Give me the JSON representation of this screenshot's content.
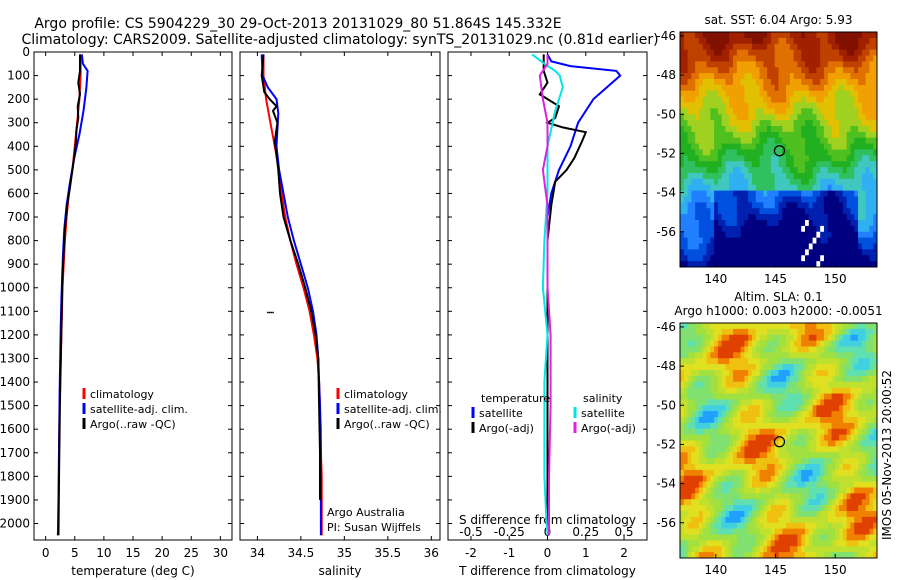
{
  "title": {
    "line1": "Argo profile: CS 5904229_30 29-Oct-2013 20131029_80 51.864S 145.332E",
    "line2": "Climatology: CARS2009. Satellite-adjusted climatology: synTS_20131029.nc (0.81d earlier)"
  },
  "colors": {
    "climatology": "#ff0000",
    "satellite": "#0000ff",
    "argo": "#000000",
    "sal_satellite": "#00e5e5",
    "sal_argo": "#e020e0"
  },
  "chart_data": [
    {
      "type": "line",
      "panel": "temperature",
      "xlabel": "temperature (deg C)",
      "ylabel": "",
      "xlim": [
        -2,
        32
      ],
      "ylim": [
        2070,
        0
      ],
      "xticks": [
        0,
        5,
        10,
        15,
        20,
        25,
        30
      ],
      "yticks": [
        0,
        100,
        200,
        300,
        400,
        500,
        600,
        700,
        800,
        900,
        1000,
        1100,
        1200,
        1300,
        1400,
        1500,
        1600,
        1700,
        1800,
        1900,
        2000
      ],
      "legend": [
        "climatology",
        "satellite-adj. clim.",
        "Argo(..raw -QC)"
      ],
      "series": [
        {
          "name": "climatology",
          "color": "#ff0000",
          "x": [
            6.0,
            6.0,
            5.8,
            5.4,
            5.0,
            4.6,
            4.0,
            3.6,
            3.3,
            3.1,
            2.9,
            2.8,
            2.7,
            2.6,
            2.5,
            2.4,
            2.35,
            2.3,
            2.25,
            2.2,
            2.15,
            2.1
          ],
          "y": [
            10,
            100,
            200,
            300,
            400,
            500,
            600,
            700,
            800,
            900,
            1000,
            1100,
            1200,
            1300,
            1400,
            1500,
            1600,
            1700,
            1800,
            1900,
            2000,
            2050
          ]
        },
        {
          "name": "satellite-adj. clim.",
          "color": "#0000ff",
          "x": [
            6.2,
            6.4,
            7.2,
            7.0,
            6.5,
            5.8,
            4.9,
            4.2,
            3.6,
            3.2,
            3.0,
            2.85,
            2.7,
            2.6,
            2.5,
            2.4,
            2.35,
            2.3,
            2.25,
            2.2,
            2.15,
            2.1
          ],
          "y": [
            10,
            50,
            80,
            150,
            250,
            350,
            450,
            550,
            650,
            750,
            850,
            950,
            1050,
            1150,
            1300,
            1450,
            1600,
            1700,
            1800,
            1900,
            2000,
            2050
          ]
        },
        {
          "name": "Argo(..raw -QC)",
          "color": "#000000",
          "x": [
            5.9,
            5.9,
            5.6,
            5.9,
            5.5,
            5.6,
            5.3,
            5.2,
            5.0,
            4.6,
            4.2,
            3.7,
            3.3,
            3.1,
            2.9,
            2.75,
            2.6,
            2.45,
            2.35,
            2.25,
            2.2
          ],
          "y": [
            10,
            80,
            130,
            180,
            230,
            280,
            330,
            380,
            430,
            500,
            570,
            650,
            750,
            850,
            950,
            1100,
            1300,
            1500,
            1700,
            1900,
            2050
          ]
        }
      ]
    },
    {
      "type": "line",
      "panel": "salinity",
      "xlabel": "salinity",
      "ylabel": "",
      "xlim": [
        33.8,
        36.1
      ],
      "ylim": [
        2070,
        0
      ],
      "xticks": [
        34,
        34.5,
        35,
        35.5,
        36
      ],
      "xticklabels": [
        "34",
        "34.5",
        "35",
        "35.5",
        "36"
      ],
      "legend": [
        "climatology",
        "satellite-adj. clim.",
        "Argo(..raw -QC)"
      ],
      "annotations": [
        "Argo Australia",
        "PI: Susan Wijffels"
      ],
      "series": [
        {
          "name": "climatology",
          "color": "#ff0000",
          "x": [
            34.07,
            34.07,
            34.1,
            34.15,
            34.2,
            34.25,
            34.28,
            34.32,
            34.38,
            34.45,
            34.53,
            34.6,
            34.65,
            34.69,
            34.71,
            34.72,
            34.73,
            34.73,
            34.74,
            34.74,
            34.74
          ],
          "y": [
            10,
            100,
            200,
            300,
            400,
            500,
            600,
            700,
            800,
            900,
            1000,
            1100,
            1200,
            1300,
            1400,
            1500,
            1600,
            1700,
            1800,
            1900,
            2050
          ]
        },
        {
          "name": "satellite-adj. clim.",
          "color": "#0000ff",
          "x": [
            34.05,
            34.06,
            34.12,
            34.22,
            34.24,
            34.22,
            34.25,
            34.3,
            34.35,
            34.42,
            34.5,
            34.58,
            34.64,
            34.68,
            34.7,
            34.71,
            34.72,
            34.72,
            34.73,
            34.73,
            34.73
          ],
          "y": [
            10,
            100,
            150,
            200,
            260,
            400,
            500,
            600,
            700,
            800,
            900,
            1000,
            1100,
            1200,
            1300,
            1400,
            1500,
            1600,
            1700,
            1900,
            2050
          ]
        },
        {
          "name": "Argo(..raw -QC)",
          "color": "#000000",
          "x": [
            34.07,
            34.06,
            34.05,
            34.08,
            34.14,
            34.22,
            34.18,
            34.23,
            34.2,
            34.24,
            34.26,
            34.3,
            34.38,
            34.47,
            34.55,
            34.62,
            34.67,
            34.7,
            34.71,
            34.72,
            34.72
          ],
          "y": [
            10,
            60,
            100,
            170,
            200,
            230,
            250,
            300,
            380,
            500,
            600,
            700,
            800,
            900,
            1000,
            1100,
            1200,
            1300,
            1500,
            1700,
            1900
          ]
        }
      ]
    },
    {
      "type": "line",
      "panel": "difference",
      "xlabel": "T difference from climatology",
      "xlabel2": "S difference from climatology",
      "ylim": [
        2070,
        0
      ],
      "xlim_T": [
        -2.6,
        2.6
      ],
      "xticks_T": [
        -2,
        -1,
        0,
        1,
        2
      ],
      "xlim_S": [
        -0.65,
        0.65
      ],
      "xticks_S": [
        -0.5,
        -0.25,
        0,
        0.25,
        0.5
      ],
      "xticklabels_S": [
        "-0.5",
        "-0.25",
        "0",
        "0.25",
        "0.5"
      ],
      "legend_headers": [
        "temperature",
        "salinity"
      ],
      "legend": [
        "satellite",
        "Argo(-adj)",
        "satellite",
        "Argo(-adj)"
      ],
      "series": [
        {
          "name": "satellite",
          "group": "temperature",
          "color": "#0000ff",
          "x": [
            0.0,
            0.1,
            0.6,
            1.2,
            1.8,
            1.9,
            1.2,
            0.8,
            0.6,
            0.3,
            0.1,
            0.0,
            0.0,
            0.0,
            0.0,
            0.0,
            0.0,
            0.0,
            0.0,
            0.0,
            0.0,
            0.0
          ],
          "y": [
            10,
            40,
            60,
            70,
            80,
            100,
            200,
            300,
            400,
            500,
            600,
            700,
            800,
            900,
            1000,
            1100,
            1300,
            1500,
            1700,
            1850,
            1950,
            2050
          ]
        },
        {
          "name": "Argo(-adj)",
          "group": "temperature",
          "color": "#000000",
          "x": [
            -0.1,
            -0.1,
            0.0,
            -0.2,
            0.3,
            0.2,
            0.0,
            0.4,
            1.0,
            0.9,
            0.7,
            0.5,
            0.2,
            0.1,
            0.0,
            0.0,
            0.0,
            0.0,
            0.0,
            0.0
          ],
          "y": [
            10,
            80,
            130,
            180,
            230,
            280,
            300,
            320,
            340,
            380,
            450,
            500,
            550,
            650,
            800,
            1000,
            1300,
            1600,
            1900,
            2050
          ]
        },
        {
          "name": "satellite",
          "group": "salinity",
          "color": "#00e5e5",
          "x": [
            -0.1,
            -0.02,
            0.05,
            0.08,
            0.1,
            0.05,
            0.0,
            0.0,
            -0.02,
            -0.03,
            0.0,
            -0.02,
            -0.02,
            -0.02,
            -0.01,
            0.0
          ],
          "y": [
            10,
            50,
            80,
            100,
            150,
            250,
            400,
            600,
            800,
            1000,
            1200,
            1400,
            1600,
            1800,
            1950,
            2050
          ]
        },
        {
          "name": "Argo(-adj)",
          "group": "salinity",
          "color": "#e020e0",
          "x": [
            0.0,
            0.0,
            -0.05,
            -0.03,
            0.0,
            0.0,
            -0.03,
            -0.02,
            0.0,
            0.0,
            0.0,
            0.02,
            0.02,
            0.01,
            0.01
          ],
          "y": [
            10,
            50,
            100,
            200,
            300,
            400,
            500,
            550,
            650,
            800,
            1000,
            1200,
            1500,
            1800,
            2050
          ]
        }
      ]
    },
    {
      "type": "heatmap",
      "panel": "sst-map",
      "title": "sat. SST: 6.04 Argo: 5.93",
      "xlim": [
        137,
        153.5
      ],
      "ylim": [
        -57.8,
        -45.8
      ],
      "xticks": [
        140,
        145,
        150
      ],
      "yticks": [
        -46,
        -48,
        -50,
        -52,
        -54,
        -56
      ],
      "marker": {
        "lon": 145.332,
        "lat": -51.864
      }
    },
    {
      "type": "heatmap",
      "panel": "sla-map",
      "title": "Altim. SLA: 0.1",
      "subtitle": "Argo h1000: 0.003 h2000: -0.0051",
      "xlim": [
        137,
        153.5
      ],
      "ylim": [
        -57.8,
        -45.8
      ],
      "xticks": [
        140,
        145,
        150
      ],
      "yticks": [
        -46,
        -48,
        -50,
        -52,
        -54,
        -56
      ],
      "marker": {
        "lon": 145.332,
        "lat": -51.864
      }
    }
  ],
  "footer": {
    "side_text": "IMOS 05-Nov-2013 20:00:52",
    "depth_ticks": [
      "0",
      "100",
      "200",
      "300",
      "400",
      "500",
      "600",
      "700",
      "800",
      "900",
      "1000",
      "1100",
      "1200",
      "1300",
      "1400",
      "1500",
      "1600",
      "1700",
      "1800",
      "1900",
      "2000"
    ]
  }
}
